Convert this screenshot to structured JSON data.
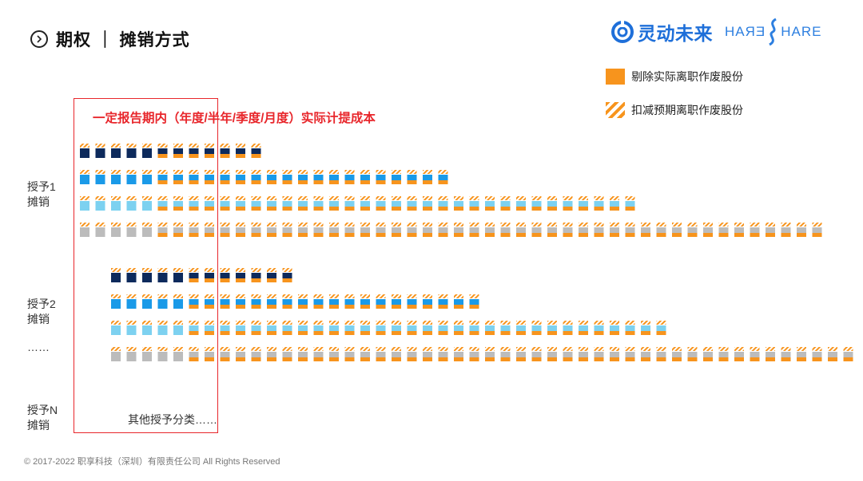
{
  "header": {
    "title": "期权 ｜ 摊销方式"
  },
  "brand": {
    "name_cn": "灵动未来",
    "share_mirrored": "ERAH",
    "share_normal": "HARE"
  },
  "legend": [
    {
      "label": "剔除实际离职作废股份",
      "pattern": "solid"
    },
    {
      "label": "扣减预期离职作废股份",
      "pattern": "striped"
    }
  ],
  "highlight": {
    "caption": "一定报告期内（年度/半年/季度/月度）实际计提成本"
  },
  "grants": [
    {
      "label": "授予1\n摊销"
    },
    {
      "label": "授予2\n摊销"
    },
    {
      "label": "……"
    },
    {
      "label": "授予N\n摊销"
    }
  ],
  "other_note": "其他授予分类……",
  "footer": "© 2017-2022 职享科技（深圳）有限责任公司 All Rights Reserved",
  "colors": {
    "navy": "#0d2a5c",
    "blue": "#1a9ae8",
    "lightblue": "#7dd1f0",
    "gray": "#bcbcbc",
    "orange": "#f7941d",
    "accent_red": "#e8262b",
    "brand_blue": "#1e6fd9"
  },
  "chart_data": {
    "type": "diagram",
    "groups": [
      {
        "name": "授予1",
        "rows": [
          {
            "color": "navy",
            "units": 12,
            "full_units": 5
          },
          {
            "color": "blue",
            "units": 24,
            "full_units": 5
          },
          {
            "color": "lightblue",
            "units": 36,
            "full_units": 5
          },
          {
            "color": "gray",
            "units": 48,
            "full_units": 5
          }
        ]
      },
      {
        "name": "授予2",
        "rows": [
          {
            "color": "navy",
            "units": 12,
            "full_units": 5
          },
          {
            "color": "blue",
            "units": 24,
            "full_units": 5
          },
          {
            "color": "lightblue",
            "units": 36,
            "full_units": 5
          },
          {
            "color": "gray",
            "units": 48,
            "full_units": 5
          }
        ]
      }
    ]
  }
}
